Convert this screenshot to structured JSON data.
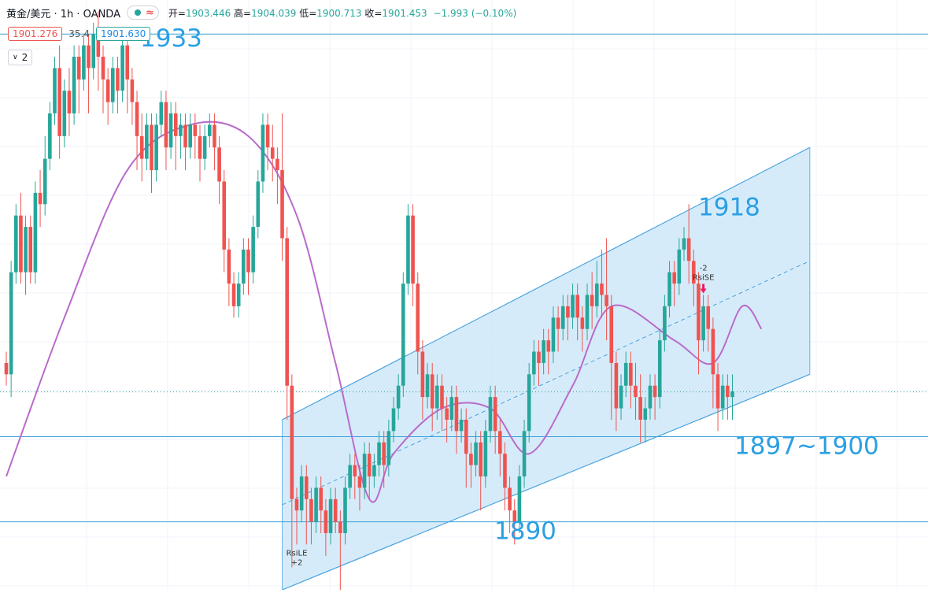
{
  "header": {
    "symbol": "黄金/美元 · 1h · OANDA",
    "wave_icon": "≈",
    "ohlc": {
      "open_label": "开=",
      "open": "1903.446",
      "high_label": "高=",
      "high": "1904.039",
      "low_label": "低=",
      "low": "1900.713",
      "close_label": "收=",
      "close": "1901.453",
      "change": "−1.993 (−0.10%)"
    }
  },
  "indicators": {
    "value_red": "1901.276",
    "value_mid": "35.4",
    "value_blue": "1901.630"
  },
  "collapse": {
    "count": "2"
  },
  "colors": {
    "up": "#26a69a",
    "down": "#ef5350",
    "ma": "#b86bcc",
    "channel": "#4aa3df",
    "channel_fill": "#cfe7f8",
    "hline": "#3aa0d6",
    "annotation": "#2b9fe3"
  },
  "chart_data": {
    "type": "candlestick",
    "title": "",
    "y_range": [
      1884,
      1936
    ],
    "price_levels": [
      {
        "value": 1933,
        "label": "1933"
      },
      {
        "value": 1897.5,
        "label": "1897~1900"
      },
      {
        "value": 1890,
        "label": "1890"
      }
    ],
    "label_1918": "1918",
    "current_price": 1901.453,
    "candles": [
      [
        1904.0,
        1903.0,
        1902.0,
        1905.0
      ],
      [
        1903.0,
        1912.0,
        1901.0,
        1913.0
      ],
      [
        1912.0,
        1917.0,
        1911.0,
        1918.0
      ],
      [
        1917.0,
        1912.0,
        1911.0,
        1919.0
      ],
      [
        1912.0,
        1916.0,
        1910.0,
        1917.0
      ],
      [
        1916.0,
        1912.0,
        1911.0,
        1917.0
      ],
      [
        1912.0,
        1919.0,
        1911.0,
        1920.0
      ],
      [
        1919.0,
        1918.0,
        1916.0,
        1921.0
      ],
      [
        1918.0,
        1922.0,
        1917.0,
        1924.0
      ],
      [
        1922.0,
        1926.0,
        1921.0,
        1927.0
      ],
      [
        1926.0,
        1930.0,
        1925.0,
        1931.0
      ],
      [
        1930.0,
        1924.0,
        1922.0,
        1932.0
      ],
      [
        1924.0,
        1928.0,
        1923.0,
        1929.0
      ],
      [
        1928.0,
        1926.0,
        1924.0,
        1930.0
      ],
      [
        1926.0,
        1931.0,
        1925.0,
        1932.0
      ],
      [
        1931.0,
        1929.0,
        1926.0,
        1932.0
      ],
      [
        1929.0,
        1932.0,
        1928.0,
        1933.0
      ],
      [
        1932.0,
        1930.0,
        1926.0,
        1933.0
      ],
      [
        1930.0,
        1933.0,
        1929.0,
        1934.0
      ],
      [
        1933.0,
        1931.0,
        1928.0,
        1935.0
      ],
      [
        1931.0,
        1929.0,
        1926.0,
        1932.0
      ],
      [
        1929.0,
        1927.0,
        1925.0,
        1930.0
      ],
      [
        1927.0,
        1930.0,
        1926.0,
        1931.0
      ],
      [
        1930.0,
        1928.0,
        1926.0,
        1931.0
      ],
      [
        1928.0,
        1932.0,
        1927.0,
        1933.0
      ],
      [
        1932.0,
        1929.0,
        1926.0,
        1933.0
      ],
      [
        1929.0,
        1927.0,
        1925.0,
        1930.0
      ],
      [
        1927.0,
        1924.0,
        1921.0,
        1928.0
      ],
      [
        1924.0,
        1922.0,
        1920.0,
        1926.0
      ],
      [
        1922.0,
        1925.0,
        1921.0,
        1926.0
      ],
      [
        1925.0,
        1921.0,
        1919.0,
        1926.0
      ],
      [
        1921.0,
        1925.0,
        1920.0,
        1926.0
      ],
      [
        1925.0,
        1927.0,
        1924.0,
        1928.0
      ],
      [
        1927.0,
        1923.0,
        1921.0,
        1928.0
      ],
      [
        1923.0,
        1926.0,
        1922.0,
        1927.0
      ],
      [
        1926.0,
        1924.0,
        1921.0,
        1927.0
      ],
      [
        1924.0,
        1925.0,
        1922.0,
        1926.0
      ],
      [
        1925.0,
        1923.0,
        1921.0,
        1926.0
      ],
      [
        1923.0,
        1925.0,
        1922.0,
        1926.0
      ],
      [
        1925.0,
        1924.0,
        1922.0,
        1926.0
      ],
      [
        1924.0,
        1922.0,
        1920.0,
        1925.0
      ],
      [
        1922.0,
        1924.0,
        1921.0,
        1925.0
      ],
      [
        1924.0,
        1925.0,
        1923.0,
        1926.0
      ],
      [
        1925.0,
        1923.0,
        1921.0,
        1926.0
      ],
      [
        1923.0,
        1920.0,
        1918.0,
        1924.0
      ],
      [
        1920.0,
        1914.0,
        1912.0,
        1921.0
      ],
      [
        1914.0,
        1911.0,
        1909.0,
        1915.0
      ],
      [
        1911.0,
        1909.0,
        1908.0,
        1912.0
      ],
      [
        1909.0,
        1911.0,
        1908.0,
        1912.0
      ],
      [
        1911.0,
        1914.0,
        1910.0,
        1915.0
      ],
      [
        1914.0,
        1912.0,
        1910.0,
        1915.0
      ],
      [
        1912.0,
        1916.0,
        1911.0,
        1917.0
      ],
      [
        1916.0,
        1920.0,
        1915.0,
        1921.0
      ],
      [
        1920.0,
        1925.0,
        1919.0,
        1926.0
      ],
      [
        1925.0,
        1923.0,
        1921.0,
        1926.0
      ],
      [
        1923.0,
        1922.0,
        1920.0,
        1925.0
      ],
      [
        1922.0,
        1921.0,
        1918.0,
        1923.0
      ],
      [
        1921.0,
        1915.0,
        1913.0,
        1926.0
      ],
      [
        1915.0,
        1902.0,
        1899.0,
        1916.0
      ],
      [
        1902.0,
        1892.0,
        1886.0,
        1903.0
      ],
      [
        1892.0,
        1891.0,
        1888.0,
        1893.0
      ],
      [
        1891.0,
        1894.0,
        1890.0,
        1895.0
      ],
      [
        1894.0,
        1892.0,
        1888.0,
        1895.0
      ],
      [
        1892.0,
        1890.0,
        1888.0,
        1893.0
      ],
      [
        1890.0,
        1893.0,
        1889.0,
        1894.0
      ],
      [
        1893.0,
        1891.0,
        1889.0,
        1894.0
      ],
      [
        1891.0,
        1889.0,
        1887.0,
        1892.0
      ],
      [
        1889.0,
        1892.0,
        1888.0,
        1893.0
      ],
      [
        1892.0,
        1890.0,
        1889.0,
        1893.0
      ],
      [
        1890.0,
        1889.0,
        1884.0,
        1891.0
      ],
      [
        1889.0,
        1893.0,
        1888.0,
        1894.0
      ],
      [
        1893.0,
        1895.0,
        1892.0,
        1896.0
      ],
      [
        1895.0,
        1894.0,
        1892.0,
        1896.0
      ],
      [
        1894.0,
        1893.0,
        1891.0,
        1895.0
      ],
      [
        1893.0,
        1896.0,
        1892.0,
        1897.0
      ],
      [
        1896.0,
        1894.0,
        1892.0,
        1897.0
      ],
      [
        1894.0,
        1895.0,
        1893.0,
        1896.0
      ],
      [
        1895.0,
        1897.0,
        1894.0,
        1898.0
      ],
      [
        1897.0,
        1895.0,
        1893.0,
        1898.0
      ],
      [
        1895.0,
        1898.0,
        1894.0,
        1899.0
      ],
      [
        1898.0,
        1900.0,
        1897.0,
        1901.0
      ],
      [
        1900.0,
        1902.0,
        1899.0,
        1903.0
      ],
      [
        1902.0,
        1911.0,
        1901.0,
        1912.0
      ],
      [
        1911.0,
        1917.0,
        1910.0,
        1918.0
      ],
      [
        1917.0,
        1911.0,
        1909.0,
        1918.0
      ],
      [
        1911.0,
        1905.0,
        1903.0,
        1912.0
      ],
      [
        1905.0,
        1901.0,
        1899.0,
        1906.0
      ],
      [
        1901.0,
        1903.0,
        1900.0,
        1904.0
      ],
      [
        1903.0,
        1900.0,
        1898.0,
        1904.0
      ],
      [
        1900.0,
        1902.0,
        1899.0,
        1903.0
      ],
      [
        1902.0,
        1900.0,
        1898.0,
        1903.0
      ],
      [
        1900.0,
        1899.0,
        1897.0,
        1901.0
      ],
      [
        1899.0,
        1901.0,
        1898.0,
        1902.0
      ],
      [
        1901.0,
        1898.0,
        1896.0,
        1902.0
      ],
      [
        1898.0,
        1899.0,
        1897.0,
        1900.0
      ],
      [
        1899.0,
        1896.0,
        1893.0,
        1900.0
      ],
      [
        1896.0,
        1895.0,
        1893.0,
        1897.0
      ],
      [
        1895.0,
        1897.0,
        1894.0,
        1898.0
      ],
      [
        1897.0,
        1894.0,
        1891.0,
        1898.0
      ],
      [
        1894.0,
        1898.0,
        1893.0,
        1899.0
      ],
      [
        1898.0,
        1901.0,
        1897.0,
        1902.0
      ],
      [
        1901.0,
        1898.0,
        1896.0,
        1902.0
      ],
      [
        1898.0,
        1896.0,
        1894.0,
        1899.0
      ],
      [
        1896.0,
        1893.0,
        1891.0,
        1897.0
      ],
      [
        1893.0,
        1891.0,
        1889.0,
        1894.0
      ],
      [
        1891.0,
        1890.0,
        1888.0,
        1892.0
      ],
      [
        1890.0,
        1894.0,
        1889.0,
        1895.0
      ],
      [
        1894.0,
        1898.0,
        1893.0,
        1899.0
      ],
      [
        1898.0,
        1903.0,
        1897.0,
        1904.0
      ],
      [
        1903.0,
        1905.0,
        1902.0,
        1906.0
      ],
      [
        1905.0,
        1904.0,
        1902.0,
        1906.0
      ],
      [
        1904.0,
        1906.0,
        1903.0,
        1907.0
      ],
      [
        1906.0,
        1905.0,
        1903.0,
        1907.0
      ],
      [
        1905.0,
        1908.0,
        1904.0,
        1909.0
      ],
      [
        1908.0,
        1907.0,
        1905.0,
        1909.0
      ],
      [
        1907.0,
        1909.0,
        1906.0,
        1910.0
      ],
      [
        1909.0,
        1908.0,
        1906.0,
        1910.0
      ],
      [
        1908.0,
        1910.0,
        1907.0,
        1911.0
      ],
      [
        1910.0,
        1908.0,
        1906.0,
        1911.0
      ],
      [
        1908.0,
        1907.0,
        1905.0,
        1909.0
      ],
      [
        1907.0,
        1910.0,
        1906.0,
        1911.0
      ],
      [
        1910.0,
        1909.0,
        1907.0,
        1912.0
      ],
      [
        1909.0,
        1911.0,
        1908.0,
        1913.0
      ],
      [
        1911.0,
        1910.0,
        1908.0,
        1914.0
      ],
      [
        1910.0,
        1909.0,
        1906.0,
        1915.0
      ],
      [
        1909.0,
        1904.0,
        1899.0,
        1910.0
      ],
      [
        1904.0,
        1900.0,
        1898.0,
        1905.0
      ],
      [
        1900.0,
        1902.0,
        1899.0,
        1903.0
      ],
      [
        1902.0,
        1904.0,
        1901.0,
        1905.0
      ],
      [
        1904.0,
        1902.0,
        1900.0,
        1905.0
      ],
      [
        1902.0,
        1901.0,
        1899.0,
        1904.0
      ],
      [
        1901.0,
        1899.0,
        1897.0,
        1903.0
      ],
      [
        1899.0,
        1900.0,
        1897.0,
        1901.0
      ],
      [
        1900.0,
        1902.0,
        1899.0,
        1903.0
      ],
      [
        1902.0,
        1901.0,
        1899.0,
        1903.0
      ],
      [
        1901.0,
        1906.0,
        1900.0,
        1907.0
      ],
      [
        1906.0,
        1909.0,
        1905.0,
        1910.0
      ],
      [
        1909.0,
        1912.0,
        1908.0,
        1913.0
      ],
      [
        1912.0,
        1911.0,
        1909.0,
        1913.0
      ],
      [
        1911.0,
        1914.0,
        1910.0,
        1915.0
      ],
      [
        1914.0,
        1915.0,
        1913.0,
        1916.0
      ],
      [
        1915.0,
        1913.0,
        1911.0,
        1918.0
      ],
      [
        1913.0,
        1911.0,
        1909.0,
        1914.0
      ],
      [
        1911.0,
        1906.0,
        1903.0,
        1912.0
      ],
      [
        1906.0,
        1909.0,
        1905.0,
        1910.0
      ],
      [
        1909.0,
        1907.0,
        1905.0,
        1910.0
      ],
      [
        1907.0,
        1903.0,
        1900.0,
        1908.0
      ],
      [
        1903.0,
        1900.0,
        1898.0,
        1904.0
      ],
      [
        1900.0,
        1902.0,
        1899.0,
        1903.0
      ],
      [
        1902.0,
        1901.0,
        1899.0,
        1903.0
      ],
      [
        1901.0,
        1901.5,
        1899.0,
        1903.0
      ]
    ],
    "moving_average": [
      [
        0,
        1894
      ],
      [
        12,
        1908
      ],
      [
        25,
        1921
      ],
      [
        38,
        1925
      ],
      [
        50,
        1924
      ],
      [
        60,
        1917
      ],
      [
        68,
        1904
      ],
      [
        75,
        1892
      ],
      [
        80,
        1896
      ],
      [
        90,
        1900
      ],
      [
        100,
        1900
      ],
      [
        108,
        1896
      ],
      [
        117,
        1902
      ],
      [
        125,
        1909
      ],
      [
        138,
        1906
      ],
      [
        146,
        1904
      ],
      [
        152,
        1909
      ],
      [
        156,
        1907
      ]
    ],
    "channel": {
      "upper_start": [
        57,
        1899
      ],
      "upper_end": [
        166,
        1923
      ],
      "lower_start": [
        57,
        1884
      ],
      "lower_end": [
        166,
        1903
      ]
    },
    "signals": [
      {
        "name": "RsiSE",
        "count": "-2",
        "bar": 144
      },
      {
        "name": "RsiLE",
        "count": "+2",
        "bar": 60
      }
    ]
  }
}
